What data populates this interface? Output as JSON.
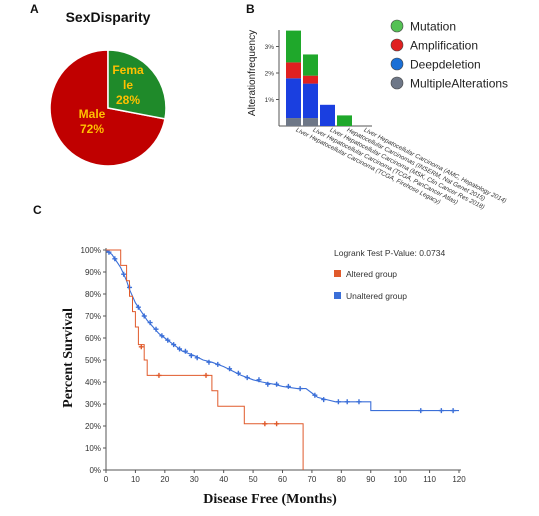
{
  "panels": {
    "a": "A",
    "b": "B",
    "c": "C"
  },
  "chart_data": [
    {
      "type": "pie",
      "title": "SexDisparity",
      "slices": [
        {
          "label": "Male",
          "percent_label": "72%",
          "value": 72,
          "color": "#c00000",
          "text_color": "#ffc000"
        },
        {
          "label": "Female",
          "label_lines": [
            "Fema",
            "le"
          ],
          "percent_label": "28%",
          "value": 28,
          "color": "#1f8a2a",
          "text_color": "#ffc000"
        }
      ]
    },
    {
      "type": "bar",
      "stacked": true,
      "ylabel": "Alterationfrequency",
      "ylim": [
        0,
        4
      ],
      "yticks": [
        1,
        2,
        3
      ],
      "ytick_labels": [
        "1%",
        "2%",
        "3%"
      ],
      "categories": [
        "Liver Hepatocellular Carcinoma (TCGA, Firehose Legacy)",
        "Liver Hepatocellular Carcinoma (TCGA, PanCancer Atlas)",
        "Liver Hepatocellular Carcinoma (MSK, Clin Cancer Res 2018)",
        "Hepatocellular Carcinomas (INSERM, Nat Genet 2015)",
        "Liver Hepatocellular Carcinoma (AMC, Hepatology 2014)"
      ],
      "series": [
        {
          "name": "MultipleAlterations",
          "color": "#6e7787",
          "values": [
            0.3,
            0.3,
            0,
            0,
            0
          ]
        },
        {
          "name": "Deepdeletion",
          "color": "#1a3fe0",
          "values": [
            1.5,
            1.3,
            0.8,
            0,
            0
          ]
        },
        {
          "name": "Amplification",
          "color": "#e02020",
          "values": [
            0.6,
            0.3,
            0,
            0,
            0
          ]
        },
        {
          "name": "Mutation",
          "color": "#1fa82b",
          "values": [
            1.2,
            0.8,
            0,
            0.4,
            0
          ]
        }
      ],
      "legend": {
        "placement": "right",
        "items": [
          {
            "label": "Mutation",
            "color": "#55c155"
          },
          {
            "label": "Amplification",
            "color": "#e02020"
          },
          {
            "label": "Deepdeletion",
            "color": "#1a6fd6"
          },
          {
            "label": "MultipleAlterations",
            "color": "#6e7787"
          }
        ]
      }
    },
    {
      "type": "line",
      "subtype": "kaplan-meier",
      "xlabel": "Disease Free (Months)",
      "ylabel": "Percent Survival",
      "xlim": [
        0,
        120
      ],
      "ylim": [
        0,
        100
      ],
      "xticks": [
        0,
        10,
        20,
        30,
        40,
        50,
        60,
        70,
        80,
        90,
        100,
        110,
        120
      ],
      "yticks": [
        0,
        10,
        20,
        30,
        40,
        50,
        60,
        70,
        80,
        90,
        100
      ],
      "ytick_labels": [
        "0%",
        "10%",
        "20%",
        "30%",
        "40%",
        "50%",
        "60%",
        "70%",
        "80%",
        "90%",
        "100%"
      ],
      "annotation": "Logrank Test P-Value: 0.0734",
      "legend": {
        "placement": "top-right",
        "items": [
          {
            "label": "Altered group",
            "color": "#e05a2b"
          },
          {
            "label": "Unaltered group",
            "color": "#3b6fd8"
          }
        ]
      },
      "series": [
        {
          "name": "Altered group",
          "color": "#e05a2b",
          "steps": [
            [
              0,
              100
            ],
            [
              5,
              100
            ],
            [
              5,
              93
            ],
            [
              7,
              93
            ],
            [
              7,
              86
            ],
            [
              8,
              86
            ],
            [
              8,
              79
            ],
            [
              9,
              79
            ],
            [
              9,
              72
            ],
            [
              10,
              72
            ],
            [
              10,
              65
            ],
            [
              11,
              65
            ],
            [
              11,
              57
            ],
            [
              13,
              57
            ],
            [
              13,
              50
            ],
            [
              14,
              50
            ],
            [
              14,
              43
            ],
            [
              36,
              43
            ],
            [
              36,
              36
            ],
            [
              38,
              36
            ],
            [
              38,
              29
            ],
            [
              47,
              29
            ],
            [
              47,
              21
            ],
            [
              67,
              21
            ],
            [
              67,
              0
            ]
          ],
          "censored": [
            [
              12,
              56
            ],
            [
              18,
              43
            ],
            [
              34,
              43
            ],
            [
              54,
              21
            ],
            [
              58,
              21
            ]
          ]
        },
        {
          "name": "Unaltered group",
          "color": "#3b6fd8",
          "steps": [
            [
              0,
              100
            ],
            [
              1,
              99
            ],
            [
              2,
              98
            ],
            [
              3,
              96
            ],
            [
              4,
              94
            ],
            [
              5,
              92
            ],
            [
              6,
              89
            ],
            [
              7,
              86
            ],
            [
              8,
              82
            ],
            [
              9,
              79
            ],
            [
              10,
              76
            ],
            [
              12,
              72
            ],
            [
              14,
              68
            ],
            [
              16,
              65
            ],
            [
              18,
              62
            ],
            [
              20,
              60
            ],
            [
              22,
              58
            ],
            [
              24,
              56
            ],
            [
              26,
              54
            ],
            [
              28,
              53
            ],
            [
              30,
              52
            ],
            [
              33,
              50
            ],
            [
              36,
              49
            ],
            [
              40,
              47
            ],
            [
              43,
              45
            ],
            [
              46,
              43
            ],
            [
              50,
              41
            ],
            [
              53,
              40
            ],
            [
              57,
              39
            ],
            [
              60,
              38
            ],
            [
              65,
              37
            ],
            [
              68,
              37
            ],
            [
              70,
              35
            ],
            [
              72,
              33
            ],
            [
              75,
              32
            ],
            [
              78,
              31
            ],
            [
              85,
              31
            ],
            [
              90,
              31
            ],
            [
              90,
              27
            ],
            [
              120,
              27
            ]
          ],
          "censored": [
            [
              1,
              99
            ],
            [
              3,
              96
            ],
            [
              6,
              89
            ],
            [
              8,
              83
            ],
            [
              11,
              74
            ],
            [
              13,
              70
            ],
            [
              15,
              67
            ],
            [
              17,
              64
            ],
            [
              19,
              61
            ],
            [
              21,
              59
            ],
            [
              23,
              57
            ],
            [
              25,
              55
            ],
            [
              27,
              54
            ],
            [
              29,
              52
            ],
            [
              31,
              51
            ],
            [
              35,
              49
            ],
            [
              38,
              48
            ],
            [
              42,
              46
            ],
            [
              45,
              44
            ],
            [
              48,
              42
            ],
            [
              52,
              41
            ],
            [
              55,
              39
            ],
            [
              58,
              39
            ],
            [
              62,
              38
            ],
            [
              66,
              37
            ],
            [
              71,
              34
            ],
            [
              74,
              32
            ],
            [
              79,
              31
            ],
            [
              82,
              31
            ],
            [
              86,
              31
            ],
            [
              107,
              27
            ],
            [
              114,
              27
            ],
            [
              118,
              27
            ]
          ]
        }
      ]
    }
  ]
}
